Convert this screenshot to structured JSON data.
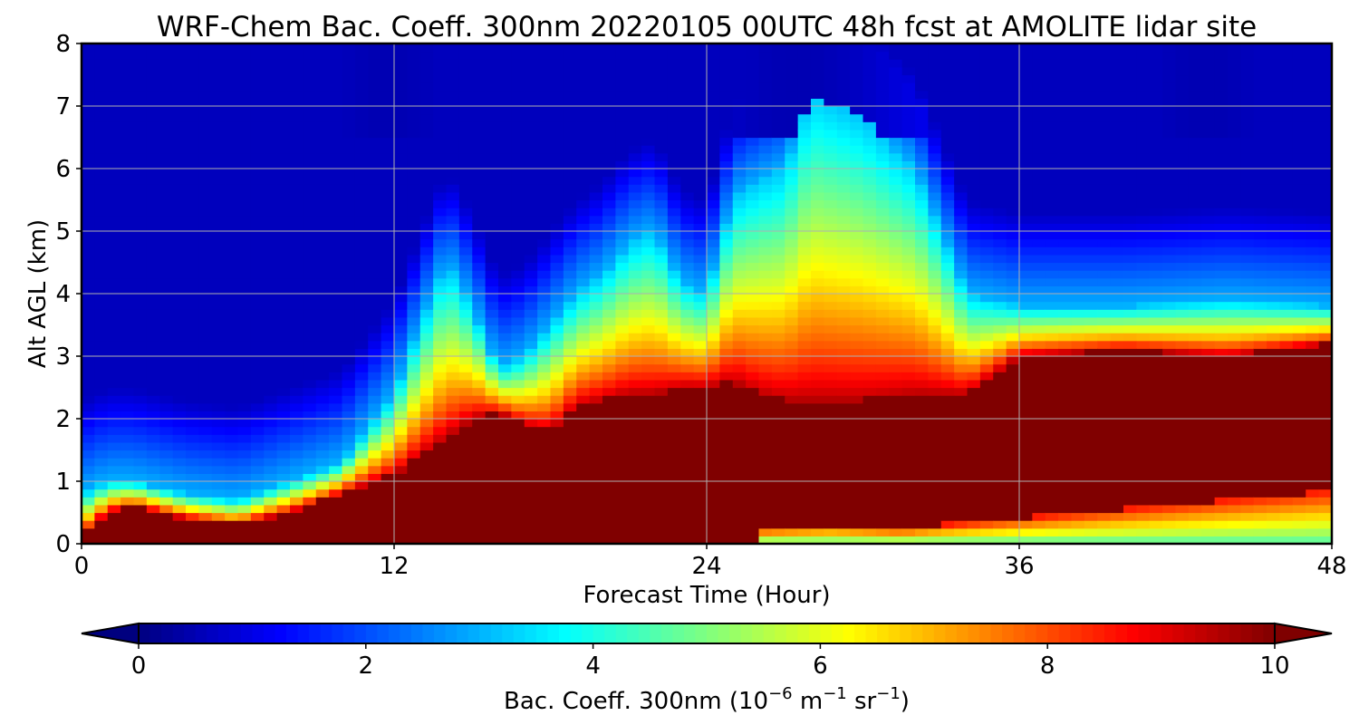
{
  "chart_data": {
    "type": "heatmap",
    "title": "WRF-Chem Bac. Coeff. 300nm  20220105 00UTC 48h fcst at AMOLITE lidar site",
    "xlabel": "Forecast Time (Hour)",
    "ylabel": "Alt AGL (km)",
    "xlim": [
      0,
      48
    ],
    "ylim": [
      0,
      8
    ],
    "xticks": [
      0,
      12,
      24,
      36,
      48
    ],
    "yticks": [
      0,
      1,
      2,
      3,
      4,
      5,
      6,
      7,
      8
    ],
    "grid": true,
    "colormap": "jet",
    "colorbar": {
      "label_main": "Bac. Coeff. 300nm  (10",
      "label_exp1": "−6",
      "label_unit1": " m",
      "label_exp2": "−1",
      "label_unit2": " sr",
      "label_exp3": "−1",
      "label_close": ")",
      "range": [
        0,
        10
      ],
      "ticks": [
        0,
        2,
        4,
        6,
        8,
        10
      ],
      "extend": "both",
      "orientation": "horizontal",
      "levels": 100
    },
    "x": [
      0,
      1,
      2,
      3,
      4,
      6,
      8,
      10,
      12,
      13,
      14,
      15,
      16,
      17,
      18,
      19,
      20,
      21,
      22,
      23,
      24,
      25,
      26,
      27,
      28,
      30,
      32,
      34,
      36,
      40,
      44,
      48
    ],
    "y": [
      0,
      0.25,
      0.5,
      0.75,
      1,
      1.25,
      1.5,
      1.75,
      2,
      2.25,
      2.5,
      2.75,
      3,
      3.25,
      3.5,
      3.75,
      4,
      4.25,
      4.5,
      4.75,
      5,
      5.5,
      6,
      6.5,
      7,
      7.5,
      8
    ],
    "features": {
      "background_value": 1.3,
      "upper_deep_value": 0.6,
      "boundary_layer_top_km": [
        0.1,
        0.5,
        0.6,
        0.5,
        0.4,
        0.3,
        0.5,
        0.8,
        1.1,
        1.4,
        1.7,
        2.0,
        2.1,
        1.9,
        1.8,
        2.2,
        2.3,
        2.4,
        2.4,
        2.5,
        2.5,
        2.6,
        2.4,
        2.3,
        2.3,
        2.3,
        2.4,
        2.4,
        3.0,
        3.1,
        3.0,
        3.2
      ],
      "aerosol_plume_top_km": [
        0.8,
        1.0,
        1.0,
        0.9,
        0.8,
        0.7,
        1.0,
        1.3,
        2.4,
        3.5,
        4.5,
        3.8,
        2.8,
        3.0,
        3.5,
        4.0,
        4.3,
        4.8,
        5.0,
        4.2,
        4.0,
        5.5,
        5.8,
        6.0,
        7.2,
        6.8,
        6.0,
        4.0,
        3.8,
        3.8,
        3.9,
        3.8
      ],
      "near_surface_min_band": {
        "x_start": 26,
        "x_end": 48,
        "top_km": [
          0.25,
          0.3,
          0.25,
          0.35,
          0.45,
          0.55,
          0.65,
          0.75,
          0.85
        ]
      }
    }
  }
}
